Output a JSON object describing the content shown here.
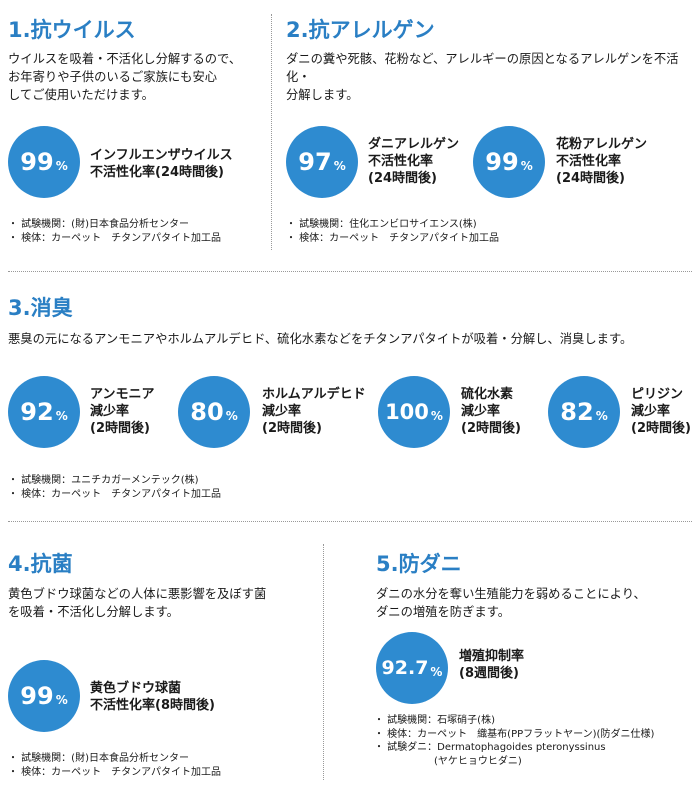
{
  "s1": {
    "title": "1.抗ウイルス",
    "desc": [
      "ウイルスを吸着・不活化し分解するので、",
      "お年寄りや子供のいるご家族にも安心",
      "してご使用いただけます。"
    ],
    "stat": {
      "value": "99",
      "unit": "%",
      "label": [
        "インフルエンザウイルス",
        "不活性化率(24時間後)"
      ]
    },
    "notes": [
      "・ 試験機関：(財)日本食品分析センター",
      "・ 検体：カーペット　チタンアパタイト加工品"
    ]
  },
  "s2": {
    "title": "2.抗アレルゲン",
    "desc": [
      "ダニの糞や死骸、花粉など、アレルギーの原因となるアレルゲンを不活化・",
      "分解します。"
    ],
    "stats": [
      {
        "value": "97",
        "unit": "%",
        "label": [
          "ダニアレルゲン",
          "不活性化率",
          "(24時間後)"
        ]
      },
      {
        "value": "99",
        "unit": "%",
        "label": [
          "花粉アレルゲン",
          "不活性化率",
          "(24時間後)"
        ]
      }
    ],
    "notes": [
      "・ 試験機関：住化エンビロサイエンス(株)",
      "・ 検体：カーペット　チタンアパタイト加工品"
    ]
  },
  "s3": {
    "title": "3.消臭",
    "desc": [
      "悪臭の元になるアンモニアやホルムアルデヒド、硫化水素などをチタンアパタイトが吸着・分解し、消臭します。"
    ],
    "stats": [
      {
        "value": "92",
        "unit": "%",
        "label": [
          "アンモニア",
          "減少率",
          "(2時間後)"
        ]
      },
      {
        "value": "80",
        "unit": "%",
        "label": [
          "ホルムアルデヒド",
          "減少率",
          "(2時間後)"
        ]
      },
      {
        "value": "100",
        "unit": "%",
        "label": [
          "硫化水素",
          "減少率",
          "(2時間後)"
        ]
      },
      {
        "value": "82",
        "unit": "%",
        "label": [
          "ピリジン",
          "減少率",
          "(2時間後)"
        ]
      }
    ],
    "notes": [
      "・ 試験機関：ユニチカガーメンテック(株)",
      "・ 検体：カーペット　チタンアパタイト加工品"
    ]
  },
  "s4": {
    "title": "4.抗菌",
    "desc": [
      "黄色ブドウ球菌などの人体に悪影響を及ぼす菌",
      "を吸着・不活化し分解します。"
    ],
    "stat": {
      "value": "99",
      "unit": "%",
      "label": [
        "黄色ブドウ球菌",
        "不活性化率(8時間後)"
      ]
    },
    "notes": [
      "・ 試験機関：(財)日本食品分析センター",
      "・ 検体：カーペット　チタンアパタイト加工品"
    ]
  },
  "s5": {
    "title": "5.防ダニ",
    "desc": [
      "ダニの水分を奪い生殖能力を弱めることにより、",
      "ダニの増殖を防ぎます。"
    ],
    "stat": {
      "value": "92.7",
      "unit": "%",
      "label": [
        "増殖抑制率",
        "(8週間後)"
      ]
    },
    "notes": [
      "・ 試験機関：石塚硝子(株)",
      "・ 検体：カーペット　織基布(PPフラットヤーン)(防ダニ仕様)",
      "・ 試験ダニ：Dermatophagoides pteronyssinus",
      "　　　　　　(ヤケヒョウヒダニ)"
    ]
  },
  "colors": {
    "accent": "#2a7fc4",
    "circle": "#2e8bd0"
  }
}
